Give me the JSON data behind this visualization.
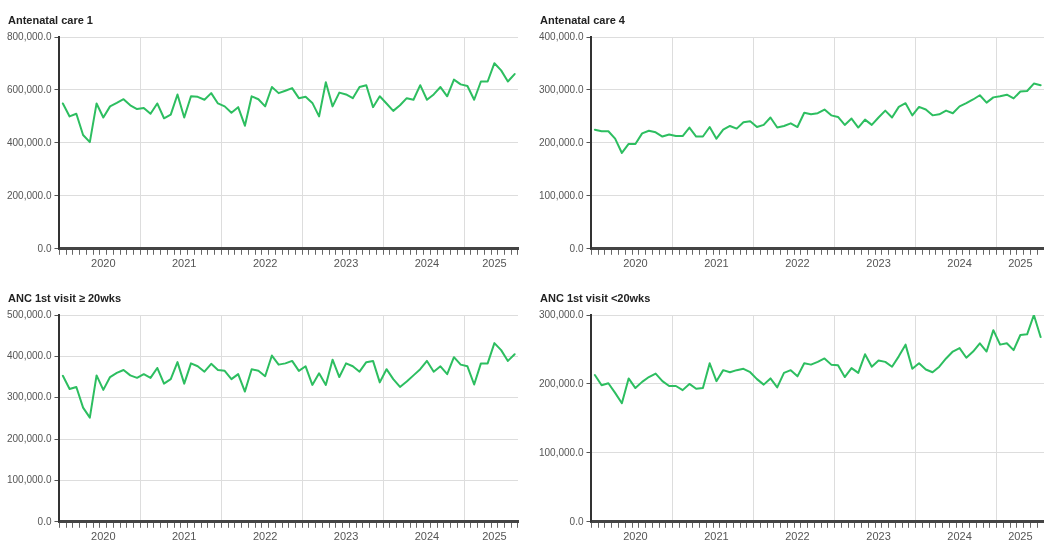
{
  "chart_data": [
    {
      "type": "line",
      "title": "Antenatal care 1",
      "categories": [
        null,
        null,
        null,
        null,
        null,
        null,
        "2020",
        null,
        null,
        null,
        null,
        null,
        null,
        null,
        null,
        null,
        null,
        null,
        "2021",
        null,
        null,
        null,
        null,
        null,
        null,
        null,
        null,
        null,
        null,
        null,
        "2022",
        null,
        null,
        null,
        null,
        null,
        null,
        null,
        null,
        null,
        null,
        null,
        "2023",
        null,
        null,
        null,
        null,
        null,
        null,
        null,
        null,
        null,
        null,
        null,
        "2024",
        null,
        null,
        null,
        null,
        null,
        null,
        null,
        null,
        null,
        "2025",
        null,
        null,
        null
      ],
      "series": [
        {
          "color": "#2dbe60",
          "values": [
            549000,
            500000,
            510000,
            430000,
            403000,
            549000,
            496000,
            538000,
            551000,
            565000,
            542000,
            528000,
            532000,
            510000,
            549000,
            493000,
            507000,
            583000,
            496000,
            576000,
            574000,
            563000,
            588000,
            549000,
            538000,
            514000,
            535000,
            465000,
            576000,
            565000,
            538000,
            611000,
            588000,
            597000,
            607000,
            569000,
            574000,
            551000,
            500000,
            629000,
            538000,
            590000,
            583000,
            569000,
            611000,
            618000,
            535000,
            576000,
            549000,
            521000,
            542000,
            569000,
            563000,
            618000,
            563000,
            583000,
            611000,
            576000,
            639000,
            621000,
            615000,
            563000,
            632000,
            632000,
            701000,
            674000,
            632000,
            660000
          ]
        }
      ],
      "ylim": [
        0,
        800000
      ],
      "yticks": [
        {
          "value": 0,
          "label": "0.0"
        },
        {
          "value": 200000,
          "label": "200,000.0"
        },
        {
          "value": 400000,
          "label": "400,000.0"
        },
        {
          "value": 600000,
          "label": "600,000.0"
        },
        {
          "value": 800000,
          "label": "800,000.0"
        }
      ],
      "grid": true,
      "legend": false,
      "marker": "none",
      "line_style": "solid"
    },
    {
      "type": "line",
      "title": "Antenatal care 4",
      "categories": [
        null,
        null,
        null,
        null,
        null,
        null,
        "2020",
        null,
        null,
        null,
        null,
        null,
        null,
        null,
        null,
        null,
        null,
        null,
        "2021",
        null,
        null,
        null,
        null,
        null,
        null,
        null,
        null,
        null,
        null,
        null,
        "2022",
        null,
        null,
        null,
        null,
        null,
        null,
        null,
        null,
        null,
        null,
        null,
        "2023",
        null,
        null,
        null,
        null,
        null,
        null,
        null,
        null,
        null,
        null,
        null,
        "2024",
        null,
        null,
        null,
        null,
        null,
        null,
        null,
        null,
        "2025",
        null,
        null,
        null
      ],
      "series": [
        {
          "color": "#2dbe60",
          "values": [
            225000,
            222000,
            222000,
            208000,
            181000,
            198000,
            198000,
            218000,
            223000,
            220000,
            212000,
            216000,
            213000,
            213000,
            229000,
            212000,
            212000,
            230000,
            208000,
            225000,
            232000,
            227000,
            239000,
            241000,
            230000,
            234000,
            248000,
            229000,
            232000,
            237000,
            230000,
            257000,
            254000,
            256000,
            263000,
            252000,
            249000,
            234000,
            246000,
            229000,
            244000,
            234000,
            248000,
            261000,
            248000,
            268000,
            275000,
            252000,
            268000,
            263000,
            252000,
            254000,
            261000,
            256000,
            269000,
            275000,
            282000,
            290000,
            276000,
            286000,
            288000,
            291000,
            284000,
            297000,
            298000,
            312000,
            309000
          ]
        }
      ],
      "ylim": [
        0,
        400000
      ],
      "yticks": [
        {
          "value": 0,
          "label": "0.0"
        },
        {
          "value": 100000,
          "label": "100,000.0"
        },
        {
          "value": 200000,
          "label": "200,000.0"
        },
        {
          "value": 300000,
          "label": "300,000.0"
        },
        {
          "value": 400000,
          "label": "400,000.0"
        }
      ],
      "grid": true,
      "legend": false,
      "marker": "none",
      "line_style": "solid"
    },
    {
      "type": "line",
      "title": "ANC 1st visit ≥ 20wks",
      "categories": [
        null,
        null,
        null,
        null,
        null,
        null,
        "2020",
        null,
        null,
        null,
        null,
        null,
        null,
        null,
        null,
        null,
        null,
        null,
        "2021",
        null,
        null,
        null,
        null,
        null,
        null,
        null,
        null,
        null,
        null,
        null,
        "2022",
        null,
        null,
        null,
        null,
        null,
        null,
        null,
        null,
        null,
        null,
        null,
        "2023",
        null,
        null,
        null,
        null,
        null,
        null,
        null,
        null,
        null,
        null,
        null,
        "2024",
        null,
        null,
        null,
        null,
        null,
        null,
        null,
        null,
        null,
        "2025",
        null,
        null,
        null
      ],
      "series": [
        {
          "color": "#2dbe60",
          "values": [
            353000,
            321000,
            326000,
            276000,
            252000,
            354000,
            319000,
            350000,
            360000,
            367000,
            354000,
            348000,
            357000,
            348000,
            372000,
            334000,
            345000,
            386000,
            334000,
            383000,
            376000,
            363000,
            382000,
            367000,
            365000,
            345000,
            357000,
            315000,
            369000,
            365000,
            352000,
            402000,
            380000,
            383000,
            389000,
            365000,
            376000,
            331000,
            359000,
            331000,
            392000,
            350000,
            383000,
            376000,
            363000,
            386000,
            389000,
            337000,
            369000,
            345000,
            326000,
            339000,
            354000,
            369000,
            389000,
            363000,
            376000,
            357000,
            398000,
            380000,
            376000,
            332000,
            383000,
            383000,
            432000,
            415000,
            389000,
            405000
          ]
        }
      ],
      "ylim": [
        0,
        500000
      ],
      "yticks": [
        {
          "value": 0,
          "label": "0.0"
        },
        {
          "value": 100000,
          "label": "100,000.0"
        },
        {
          "value": 200000,
          "label": "200,000.0"
        },
        {
          "value": 300000,
          "label": "300,000.0"
        },
        {
          "value": 400000,
          "label": "400,000.0"
        },
        {
          "value": 500000,
          "label": "500,000.0"
        }
      ],
      "grid": true,
      "legend": false,
      "marker": "none",
      "line_style": "solid"
    },
    {
      "type": "line",
      "title": "ANC 1st visit <20wks",
      "categories": [
        null,
        null,
        null,
        null,
        null,
        null,
        "2020",
        null,
        null,
        null,
        null,
        null,
        null,
        null,
        null,
        null,
        null,
        null,
        "2021",
        null,
        null,
        null,
        null,
        null,
        null,
        null,
        null,
        null,
        null,
        null,
        "2022",
        null,
        null,
        null,
        null,
        null,
        null,
        null,
        null,
        null,
        null,
        null,
        "2023",
        null,
        null,
        null,
        null,
        null,
        null,
        null,
        null,
        null,
        null,
        null,
        "2024",
        null,
        null,
        null,
        null,
        null,
        null,
        null,
        null,
        "2025",
        null,
        null,
        null
      ],
      "series": [
        {
          "color": "#2dbe60",
          "values": [
            213000,
            198000,
            201000,
            187000,
            172000,
            208000,
            194000,
            203000,
            210000,
            215000,
            204000,
            197000,
            197000,
            191000,
            200000,
            193000,
            194000,
            230000,
            204000,
            220000,
            217000,
            220000,
            222000,
            217000,
            207000,
            199000,
            208000,
            195000,
            216000,
            220000,
            211000,
            230000,
            228000,
            232000,
            237000,
            228000,
            227000,
            210000,
            223000,
            216000,
            243000,
            225000,
            234000,
            232000,
            225000,
            240000,
            257000,
            222000,
            230000,
            221000,
            217000,
            225000,
            237000,
            247000,
            252000,
            238000,
            247000,
            259000,
            247000,
            278000,
            257000,
            259000,
            249000,
            271000,
            272000,
            300000,
            268000
          ]
        }
      ],
      "ylim": [
        0,
        300000
      ],
      "yticks": [
        {
          "value": 0,
          "label": "0.0"
        },
        {
          "value": 100000,
          "label": "100,000.0"
        },
        {
          "value": 200000,
          "label": "200,000.0"
        },
        {
          "value": 300000,
          "label": "300,000.0"
        }
      ],
      "grid": true,
      "legend": false,
      "marker": "none",
      "line_style": "solid"
    }
  ]
}
